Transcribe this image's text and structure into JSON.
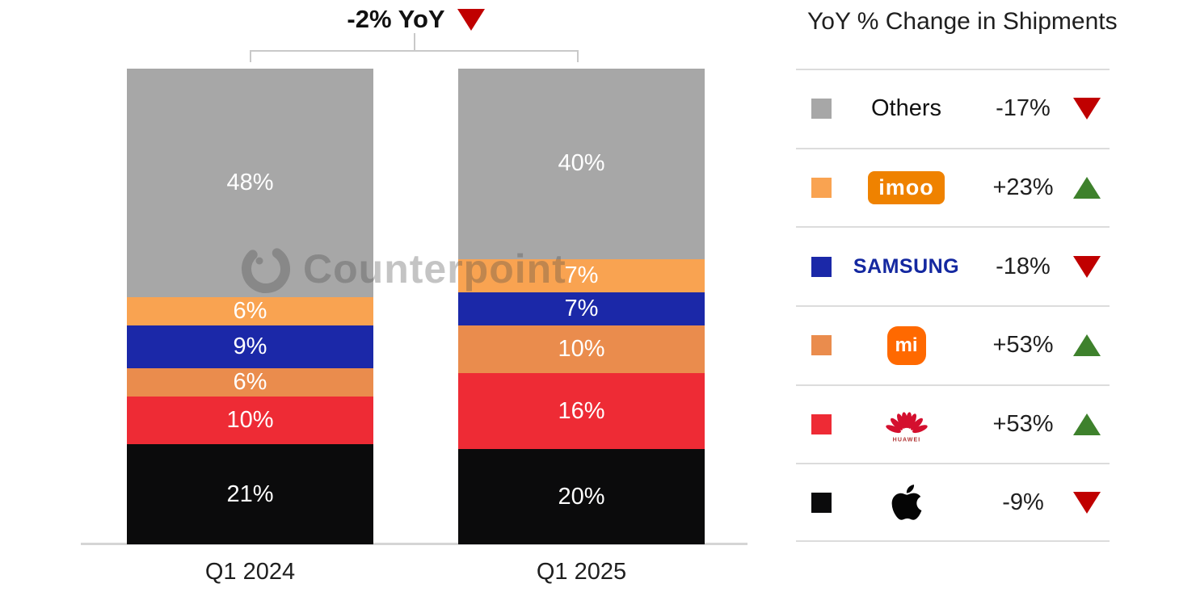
{
  "chart": {
    "title": "-2% YoY",
    "title_direction": "down",
    "watermark": "Counterpoint"
  },
  "chart_data": {
    "type": "bar",
    "subtype": "stacked-100",
    "title": "-2% YoY",
    "categories": [
      "Q1 2024",
      "Q1 2025"
    ],
    "unit": "%",
    "ylim": [
      0,
      100
    ],
    "value_labels": true,
    "value_label_color": "#ffffff",
    "stack_order_top_to_bottom": [
      "Others",
      "imoo",
      "Samsung",
      "Xiaomi",
      "Huawei",
      "Apple"
    ],
    "series": [
      {
        "name": "Others",
        "color": "#a7a7a7",
        "values": [
          48,
          40
        ]
      },
      {
        "name": "imoo",
        "color": "#f9a351",
        "values": [
          6,
          7
        ]
      },
      {
        "name": "Samsung",
        "color": "#1b28a8",
        "values": [
          9,
          7
        ]
      },
      {
        "name": "Xiaomi",
        "color": "#ea8c4d",
        "values": [
          6,
          10
        ]
      },
      {
        "name": "Huawei",
        "color": "#ee2b35",
        "values": [
          10,
          16
        ]
      },
      {
        "name": "Apple",
        "color": "#0b0b0c",
        "values": [
          21,
          20
        ]
      }
    ]
  },
  "legend": {
    "title": "YoY % Change in Shipments",
    "colors": {
      "up": "#3e812c",
      "down": "#c00000"
    },
    "rows": [
      {
        "brand": "Others",
        "type": "text",
        "label": "Others",
        "change": "-17%",
        "direction": "down",
        "swatch": "#a7a7a7"
      },
      {
        "brand": "imoo",
        "type": "imoo",
        "logo_text": "imoo",
        "change": "+23%",
        "direction": "up",
        "swatch": "#f9a351"
      },
      {
        "brand": "Samsung",
        "type": "samsung",
        "logo_text": "SAMSUNG",
        "change": "-18%",
        "direction": "down",
        "swatch": "#1b28a8"
      },
      {
        "brand": "Xiaomi",
        "type": "xiaomi",
        "logo_text": "mi",
        "change": "+53%",
        "direction": "up",
        "swatch": "#ea8c4d"
      },
      {
        "brand": "Huawei",
        "type": "huawei",
        "logo_text": "HUAWEI",
        "change": "+53%",
        "direction": "up",
        "swatch": "#ee2b35"
      },
      {
        "brand": "Apple",
        "type": "apple",
        "change": "-9%",
        "direction": "down",
        "swatch": "#0b0b0c"
      }
    ]
  }
}
